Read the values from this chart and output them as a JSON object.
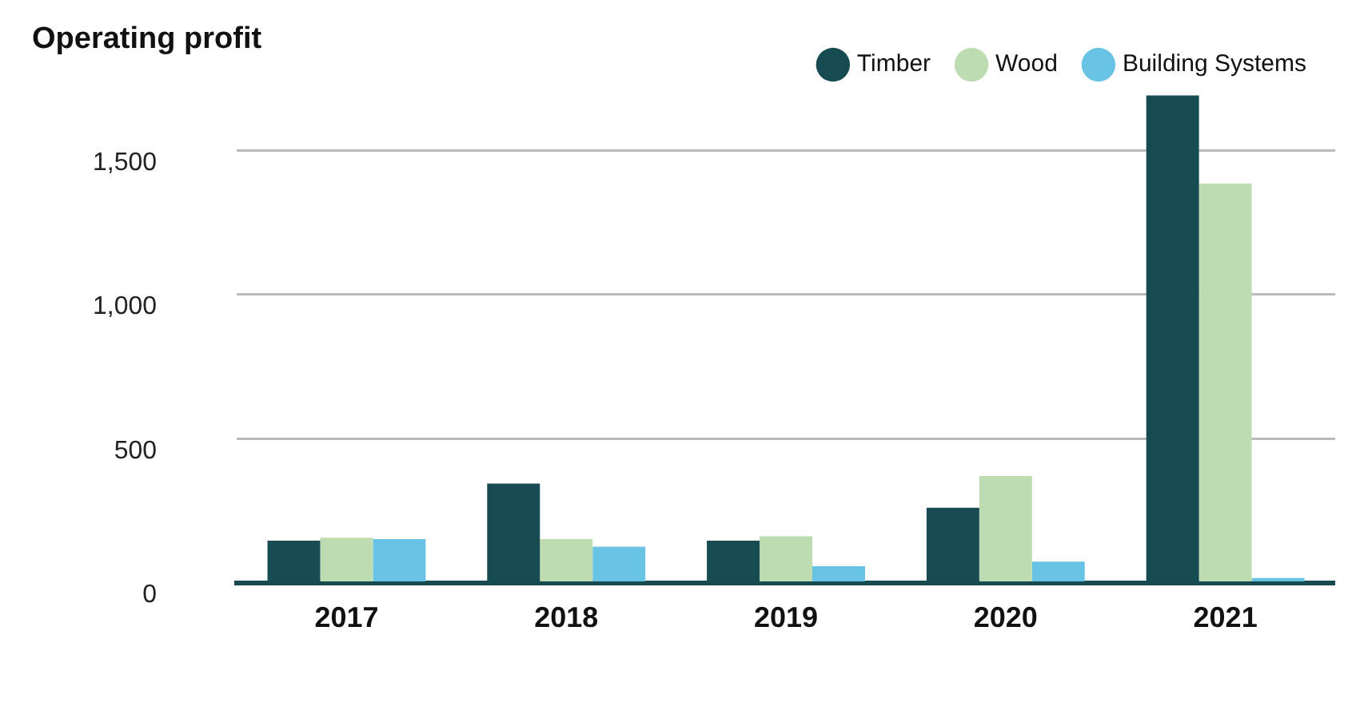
{
  "chart_data": {
    "type": "bar",
    "title": "Operating profit",
    "categories": [
      "2017",
      "2018",
      "2019",
      "2020",
      "2021"
    ],
    "series": [
      {
        "name": "Timber",
        "color": "#174b52",
        "values": [
          146,
          344,
          146,
          260,
          1690
        ]
      },
      {
        "name": "Wood",
        "color": "#bddcb1",
        "values": [
          156,
          151,
          161,
          370,
          1385
        ]
      },
      {
        "name": "Building Systems",
        "color": "#68c3e4",
        "values": [
          151,
          125,
          57,
          73,
          16
        ]
      }
    ],
    "ylim": [
      0,
      1700
    ],
    "yticks": [
      0,
      500,
      {
        "value": 1000,
        "label": "1,000"
      },
      {
        "value": 1500,
        "label": "1,500"
      }
    ],
    "grid": "y",
    "legend": "top right"
  }
}
